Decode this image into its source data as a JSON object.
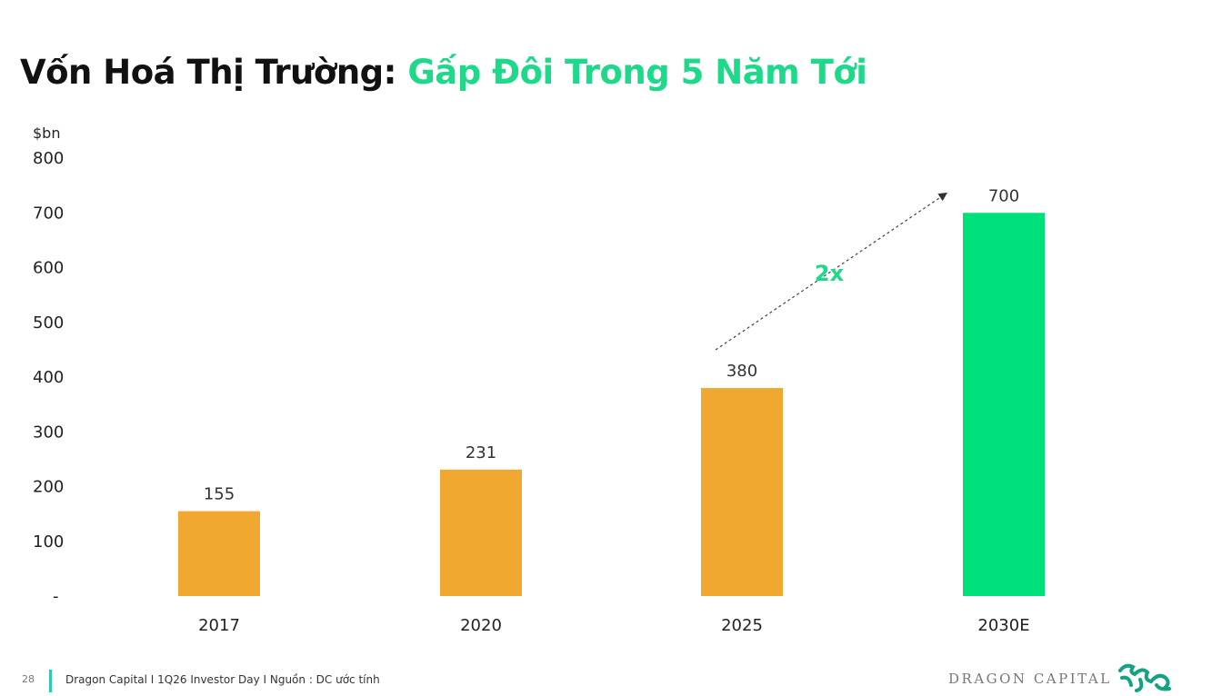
{
  "title": {
    "main": "Vốn Hoá Thị Trường:",
    "highlight": "Gấp Đôi Trong 5 Năm Tới"
  },
  "colors": {
    "history": "#f0a830",
    "estimate": "#00e07a",
    "accent": "#1ed98a",
    "footer_bar": "#2ec9b4"
  },
  "chart_data": {
    "type": "bar",
    "title": "Vốn Hoá Thị Trường: Gấp Đôi Trong 5 Năm Tới",
    "ylabel": "$bn",
    "categories": [
      "2017",
      "2020",
      "2025",
      "2030E"
    ],
    "values": [
      155,
      231,
      380,
      700
    ],
    "data_labels": [
      "155",
      "231",
      "380",
      "700"
    ],
    "ylim": [
      0,
      800
    ],
    "yticks": [
      0,
      100,
      200,
      300,
      400,
      500,
      600,
      700,
      800
    ],
    "ytick_labels": [
      "-",
      "100",
      "200",
      "300",
      "400",
      "500",
      "600",
      "700",
      "800"
    ],
    "grid": false,
    "annotation": {
      "text": "2x",
      "from": "2025",
      "to": "2030E"
    }
  },
  "footer": {
    "page": "28",
    "text": "Dragon Capital I 1Q26 Investor Day I Nguồn : DC ước tính"
  },
  "logo": {
    "text": "DRAGON CAPITAL",
    "icon": "dragon-icon"
  }
}
